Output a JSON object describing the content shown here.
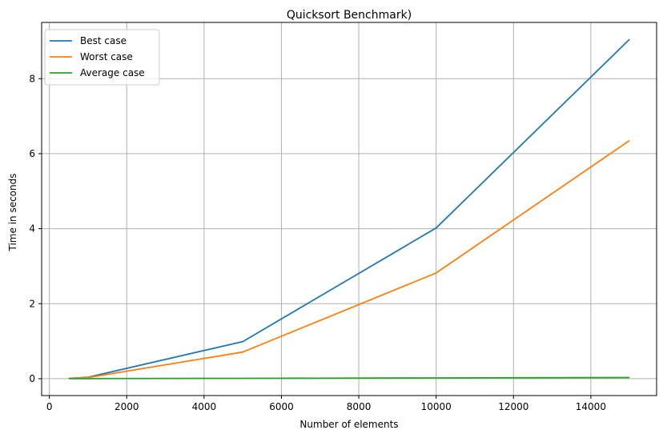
{
  "chart_data": {
    "type": "line",
    "title": "Quicksort Benchmark)",
    "xlabel": "Number of elements",
    "ylabel": "Time in seconds",
    "xlim": [
      -200,
      15700
    ],
    "ylim": [
      -0.45,
      9.5
    ],
    "xticks": [
      0,
      2000,
      4000,
      6000,
      8000,
      10000,
      12000,
      14000
    ],
    "yticks": [
      0,
      2,
      4,
      6,
      8
    ],
    "grid": true,
    "legend_position": "top-left",
    "x": [
      500,
      1000,
      5000,
      10000,
      15000
    ],
    "series": [
      {
        "name": "Best case",
        "color": "#1f77b4",
        "values": [
          0.01,
          0.04,
          0.99,
          4.02,
          9.05
        ]
      },
      {
        "name": "Worst case",
        "color": "#ff7f0e",
        "values": [
          0.01,
          0.03,
          0.71,
          2.82,
          6.35
        ]
      },
      {
        "name": "Average case",
        "color": "#2ca02c",
        "values": [
          0.001,
          0.002,
          0.01,
          0.02,
          0.03
        ]
      }
    ]
  }
}
